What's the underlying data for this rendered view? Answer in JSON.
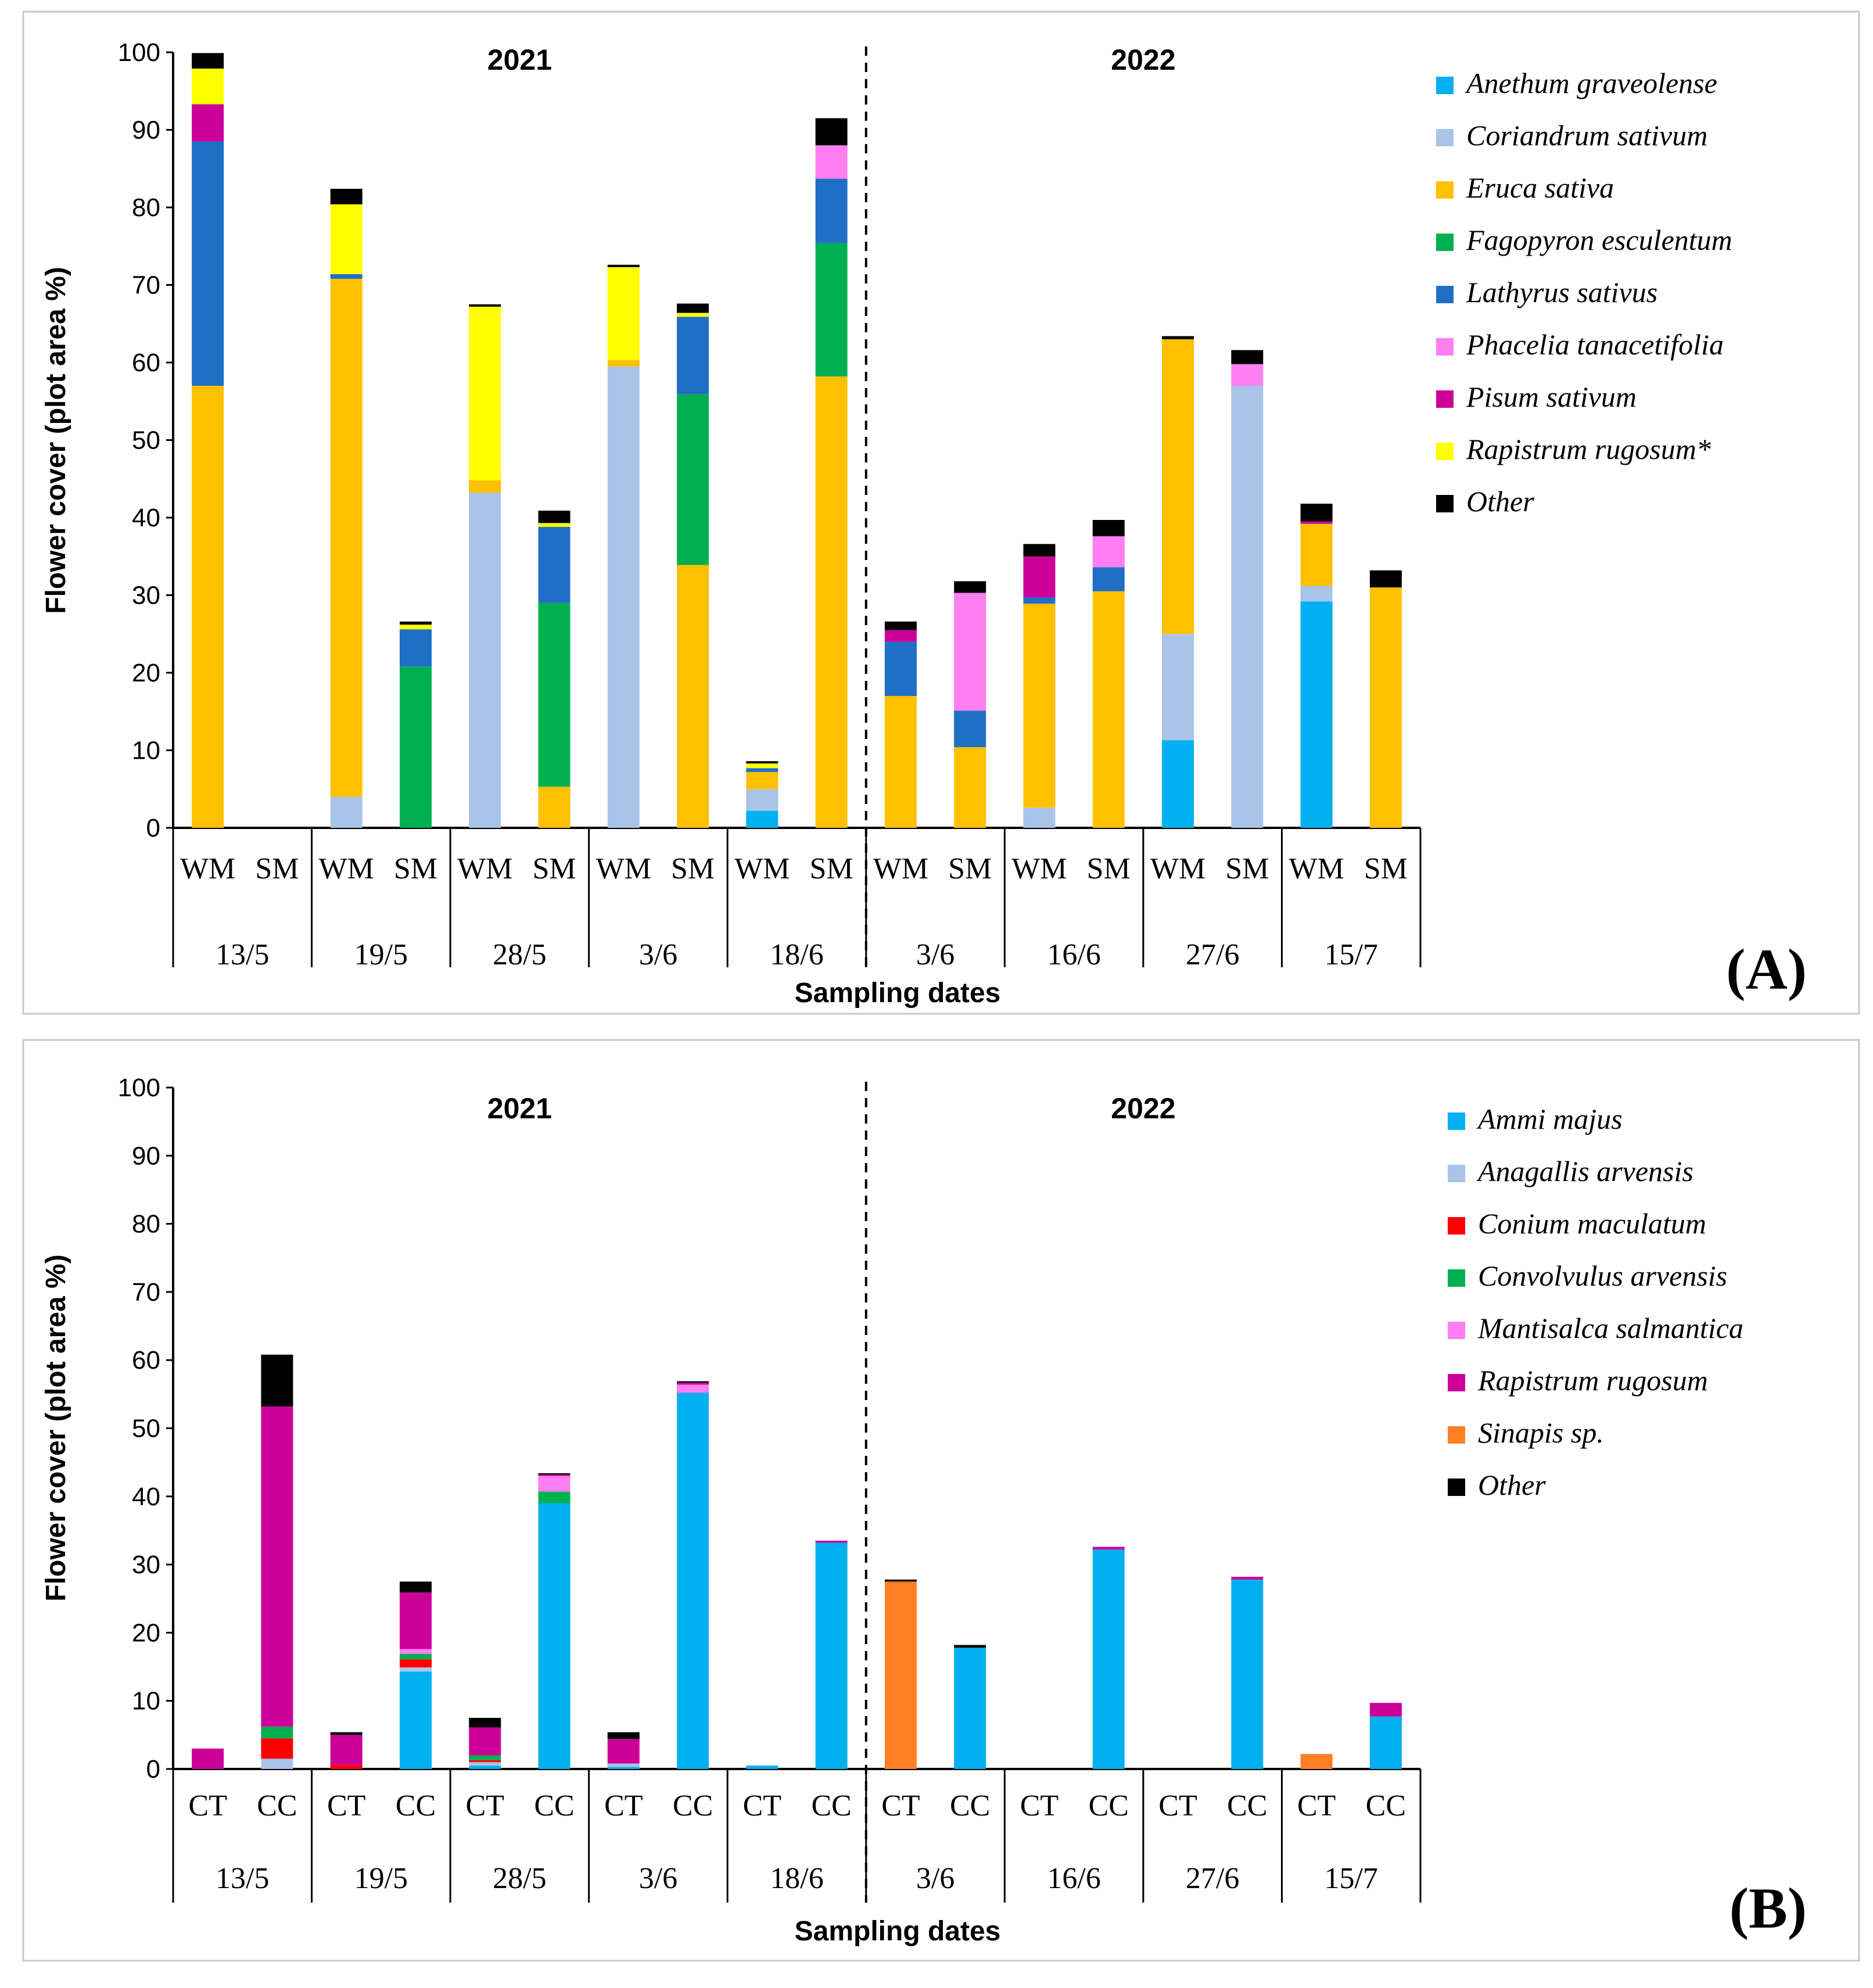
{
  "chart_data": [
    {
      "type": "bar",
      "stacked": true,
      "panel_label": "(A)",
      "ylabel": "Flower cover (plot area %)",
      "xlabel": "Sampling dates",
      "ylim": [
        0,
        100
      ],
      "yticks": [
        "0",
        "10",
        "20",
        "30",
        "40",
        "50",
        "60",
        "70",
        "80",
        "90",
        "100"
      ],
      "years": [
        "2021",
        "2022"
      ],
      "dates": [
        "13/5",
        "19/5",
        "28/5",
        "3/6",
        "18/6",
        "3/6",
        "16/6",
        "27/6",
        "15/7"
      ],
      "categories": [
        "WM",
        "SM",
        "WM",
        "SM",
        "WM",
        "SM",
        "WM",
        "SM",
        "WM",
        "SM",
        "WM",
        "SM",
        "WM",
        "SM",
        "WM",
        "SM",
        "WM",
        "SM"
      ],
      "series": [
        {
          "name": "Anethum graveolense",
          "color": "#00b0f0",
          "values": [
            0,
            0,
            0,
            0,
            0,
            0,
            0,
            0,
            2.2,
            0,
            0,
            0,
            0,
            0,
            11.3,
            0,
            29.2,
            0
          ]
        },
        {
          "name": "Coriandrum sativum",
          "color": "#a9c4e8",
          "values": [
            0,
            0,
            4,
            0,
            43.2,
            0,
            59.5,
            0,
            2.8,
            0,
            0,
            0,
            2.6,
            0,
            13.7,
            57,
            2,
            0
          ]
        },
        {
          "name": "Eruca sativa",
          "color": "#ffc000",
          "values": [
            57,
            0,
            66.8,
            0,
            1.6,
            5.3,
            0.8,
            33.9,
            2.2,
            58.2,
            17,
            10.4,
            26.3,
            30.5,
            38,
            0,
            8,
            31
          ]
        },
        {
          "name": "Fagopyron esculentum",
          "color": "#00b050",
          "values": [
            0,
            0,
            0,
            20.8,
            0,
            23.7,
            0,
            22,
            0,
            17.2,
            0,
            0,
            0,
            0,
            0,
            0,
            0,
            0
          ]
        },
        {
          "name": "Lathyrus sativus",
          "color": "#1f6fc6",
          "values": [
            31.5,
            0,
            0.6,
            4.8,
            0,
            9.8,
            0,
            10,
            0.5,
            8.3,
            7,
            4.7,
            0.8,
            3.1,
            0,
            0,
            0,
            0
          ]
        },
        {
          "name": "Phacelia tanacetifolia",
          "color": "#ff7ff0",
          "values": [
            0,
            0,
            0,
            0,
            0,
            0,
            0,
            0,
            0,
            4.3,
            0,
            15.2,
            0,
            4,
            0,
            2.8,
            0,
            0
          ]
        },
        {
          "name": "Pisum sativum",
          "color": "#cc0099",
          "values": [
            4.8,
            0,
            0,
            0,
            0,
            0,
            0,
            0,
            0,
            0,
            1.5,
            0,
            5.3,
            0,
            0,
            0,
            0.3,
            0
          ]
        },
        {
          "name": "Rapistrum rugosum*",
          "color": "#ffff00",
          "values": [
            4.6,
            0,
            9,
            0.6,
            22.4,
            0.5,
            12,
            0.5,
            0.6,
            0,
            0,
            0,
            0,
            0,
            0,
            0,
            0,
            0
          ]
        },
        {
          "name": "Other",
          "color": "#000000",
          "values": [
            2,
            0,
            2,
            0.4,
            0.3,
            1.6,
            0.3,
            1.2,
            0.3,
            3.5,
            1.1,
            1.5,
            1.6,
            2.1,
            0.4,
            1.8,
            2.3,
            2.2
          ]
        }
      ]
    },
    {
      "type": "bar",
      "stacked": true,
      "panel_label": "(B)",
      "ylabel": "Flower cover (plot area %)",
      "xlabel": "Sampling dates",
      "ylim": [
        0,
        100
      ],
      "yticks": [
        "0",
        "10",
        "20",
        "30",
        "40",
        "50",
        "60",
        "70",
        "80",
        "90",
        "100"
      ],
      "years": [
        "2021",
        "2022"
      ],
      "dates": [
        "13/5",
        "19/5",
        "28/5",
        "3/6",
        "18/6",
        "3/6",
        "16/6",
        "27/6",
        "15/7"
      ],
      "categories": [
        "CT",
        "CC",
        "CT",
        "CC",
        "CT",
        "CC",
        "CT",
        "CC",
        "CT",
        "CC",
        "CT",
        "CC",
        "CT",
        "CC",
        "CT",
        "CC",
        "CT",
        "CC"
      ],
      "series": [
        {
          "name": "Ammi majus",
          "color": "#00b0f0",
          "values": [
            0,
            0,
            0,
            14.3,
            0.5,
            39,
            0.3,
            55.2,
            0.5,
            33.2,
            0,
            17.8,
            0,
            32.2,
            0,
            27.8,
            0,
            7.7
          ]
        },
        {
          "name": "Anagallis arvensis",
          "color": "#a9c4e8",
          "values": [
            0,
            1.5,
            0,
            0.6,
            0.5,
            0,
            0.5,
            0,
            0,
            0,
            0,
            0,
            0,
            0,
            0,
            0,
            0,
            0
          ]
        },
        {
          "name": "Conium maculatum",
          "color": "#ff0000",
          "values": [
            0,
            3,
            0.6,
            1.2,
            0.3,
            0,
            0,
            0,
            0,
            0,
            0,
            0,
            0,
            0,
            0,
            0,
            0,
            0
          ]
        },
        {
          "name": "Convolvulus arvensis",
          "color": "#00b050",
          "values": [
            0,
            1.7,
            0,
            0.8,
            0.7,
            1.7,
            0,
            0,
            0,
            0,
            0,
            0,
            0,
            0,
            0,
            0,
            0,
            0
          ]
        },
        {
          "name": "Mantisalca salmantica",
          "color": "#ff7ff0",
          "values": [
            0,
            0,
            0,
            0.7,
            0,
            2.3,
            0,
            1.2,
            0,
            0,
            0,
            0,
            0,
            0,
            0,
            0,
            0,
            0
          ]
        },
        {
          "name": "Rapistrum rugosum",
          "color": "#cc0099",
          "values": [
            3,
            47,
            4.4,
            8.3,
            4.1,
            0.2,
            3.6,
            0.3,
            0,
            0.3,
            0,
            0,
            0,
            0.4,
            0,
            0.4,
            0,
            2
          ]
        },
        {
          "name": "Sinapis sp.",
          "color": "#ff7f27",
          "values": [
            0,
            0,
            0,
            0,
            0,
            0,
            0,
            0,
            0,
            0,
            27.5,
            0,
            0,
            0,
            0,
            0,
            2.2,
            0
          ]
        },
        {
          "name": "Other",
          "color": "#000000",
          "values": [
            0,
            7.6,
            0.4,
            1.6,
            1.4,
            0.2,
            1,
            0.2,
            0,
            0,
            0.3,
            0.4,
            0,
            0,
            0,
            0,
            0,
            0
          ]
        }
      ]
    }
  ]
}
